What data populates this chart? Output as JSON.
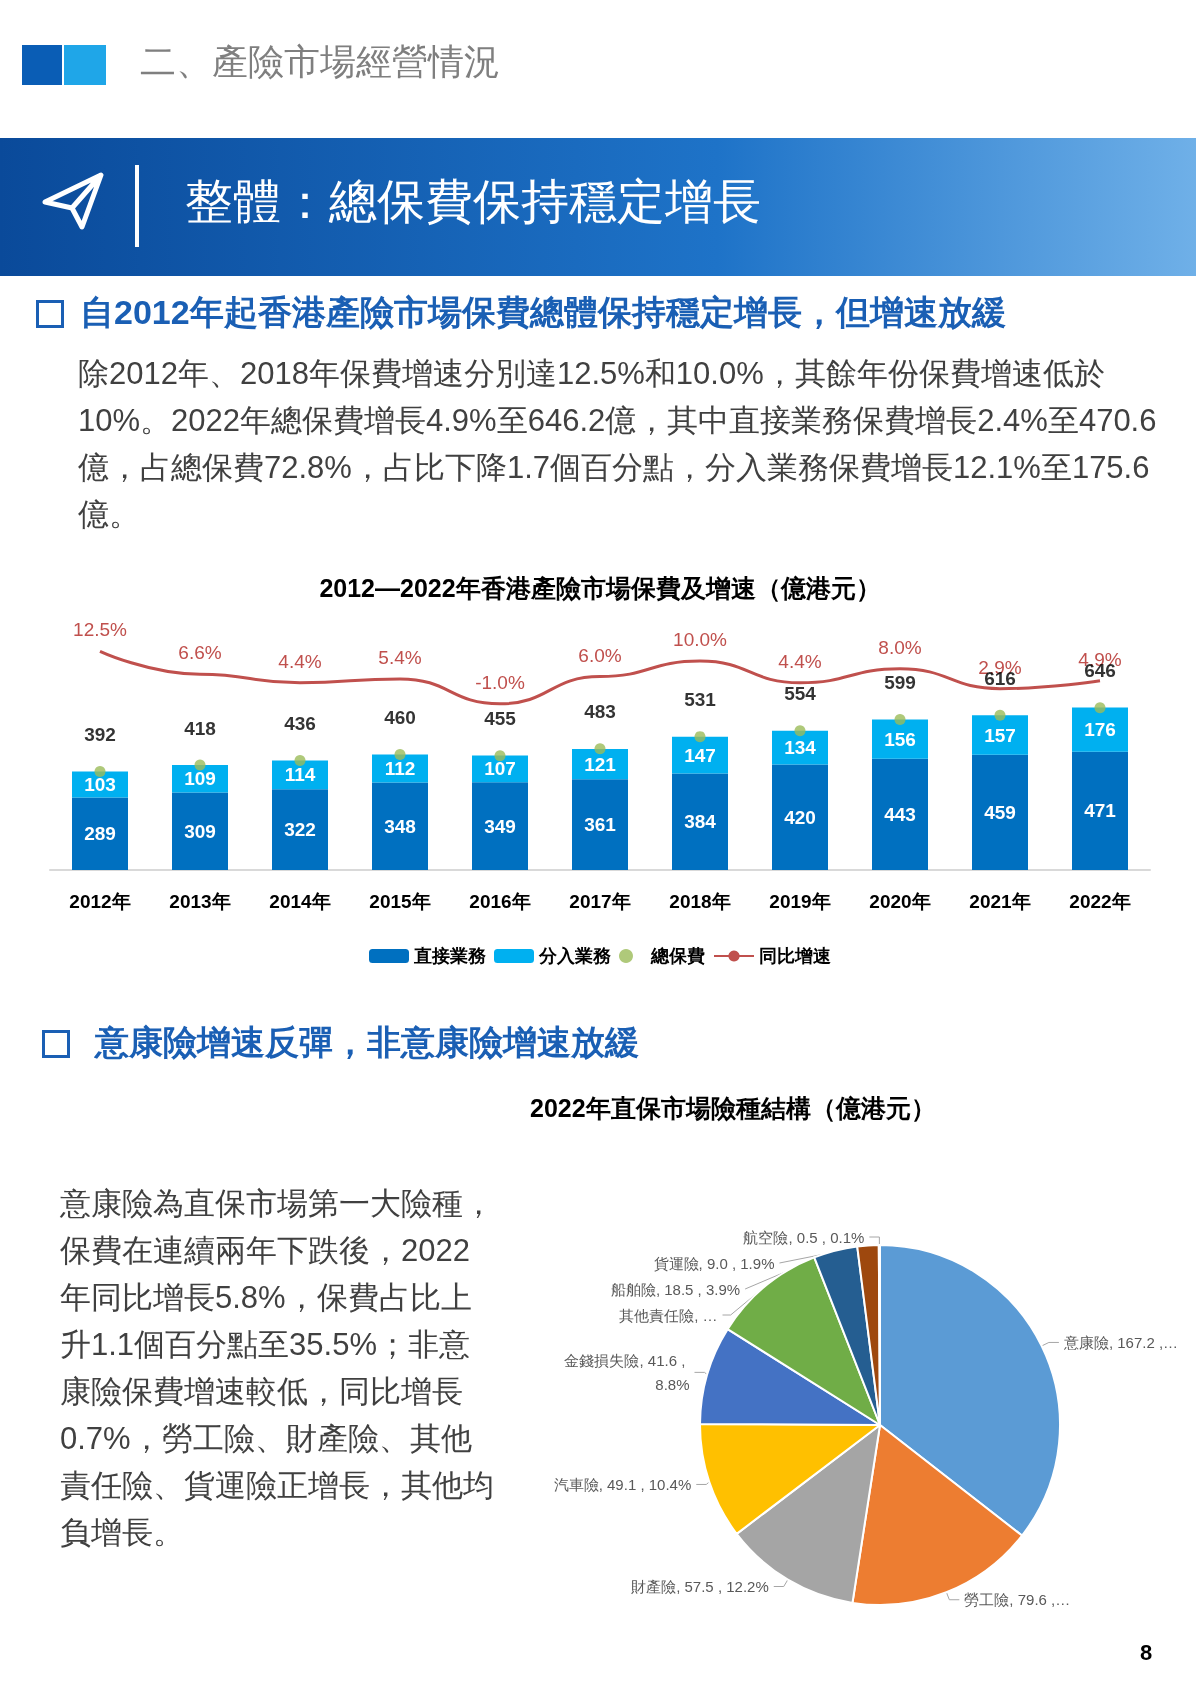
{
  "chart_data": [
    {
      "type": "bar",
      "title": "2012—2022年香港產險市場保費及增速（億港元）",
      "annotations": [
        "二、產險市場經營情況",
        "整體：總保費保持穩定增長",
        "自2012年起香港產險市場保費總體保持穩定增長，但增速放緩",
        "除2012年、2018年保費增速分別達12.5%和10.0%，其餘年份保費增速低於10%。2022年總保費增長4.9%至646.2億，其中直接業務保費增長2.4%至470.6億，占總保費72.8%，占比下降1.7個百分點，分入業務保費增長12.1%至175.6億。"
      ],
      "categories": [
        "2012年",
        "2013年",
        "2014年",
        "2015年",
        "2016年",
        "2017年",
        "2018年",
        "2019年",
        "2020年",
        "2021年",
        "2022年"
      ],
      "stacked": true,
      "data_labels": true,
      "legend": "bottom",
      "tick_labels": "x",
      "series": [
        {
          "name": "直接業務",
          "color": "#0070c0",
          "values": [
            289,
            309,
            322,
            348,
            349,
            361,
            384,
            420,
            443,
            459,
            471
          ]
        },
        {
          "name": "分入業務",
          "color": "#00b0f0",
          "values": [
            103,
            109,
            114,
            112,
            107,
            121,
            147,
            134,
            156,
            157,
            176
          ]
        },
        {
          "name": "總保費",
          "type": "scatter",
          "marker": "circle",
          "color": "#9bbb59",
          "x": [
            "2012年",
            "2013年",
            "2014年",
            "2015年",
            "2016年",
            "2017年",
            "2018年",
            "2019年",
            "2020年",
            "2021年",
            "2022年"
          ],
          "values": [
            392,
            418,
            436,
            460,
            455,
            483,
            531,
            554,
            599,
            616,
            646
          ]
        },
        {
          "name": "同比增速",
          "type": "line",
          "axis": "y2",
          "marker": "none",
          "color": "#c0504d",
          "values": [
            12.5,
            6.6,
            4.4,
            5.4,
            -1.0,
            6.0,
            10.0,
            4.4,
            8.0,
            2.9,
            4.9
          ],
          "value_labels": [
            "12.5%",
            "6.6%",
            "4.4%",
            "5.4%",
            "-1.0%",
            "6.0%",
            "10.0%",
            "4.4%",
            "8.0%",
            "2.9%",
            "4.9%"
          ]
        }
      ]
    },
    {
      "type": "pie",
      "title": "2022年直保市場險種結構（億港元）",
      "annotations": [
        "意康險增速反彈，非意康險增速放緩",
        "意康險為直保市場第一大險種，保費在連續兩年下跌後，2022年同比增長5.8%，保費占比上升1.1個百分點至35.5%；非意康險保費增速較低，同比增長0.7%，勞工險、財產險、其他責任險、貨運險正增長，其他均負增長。",
        "8"
      ],
      "categories": [
        "意康險",
        "勞工險",
        "財產險",
        "汽車險",
        "金錢損失險",
        "其他責任險",
        "船舶險",
        "貨運險",
        "航空險"
      ],
      "values": [
        167.2,
        79.6,
        57.5,
        49.1,
        41.6,
        47.6,
        18.5,
        9.0,
        0.5
      ],
      "value_labels": [
        "167.2 ,…",
        "79.6 ,…",
        "57.5 , 12.2%",
        "49.1 , 10.4%",
        "41.6 , 8.8%",
        "…",
        "18.5 , 3.9%",
        "9.0 , 1.9%",
        "0.5 , 0.1%"
      ],
      "colors": [
        "#5b9bd5",
        "#ed7d31",
        "#a5a5a5",
        "#ffc000",
        "#4472c4",
        "#70ad47",
        "#255e91",
        "#9e480e",
        "#636363"
      ],
      "legend": false
    }
  ]
}
